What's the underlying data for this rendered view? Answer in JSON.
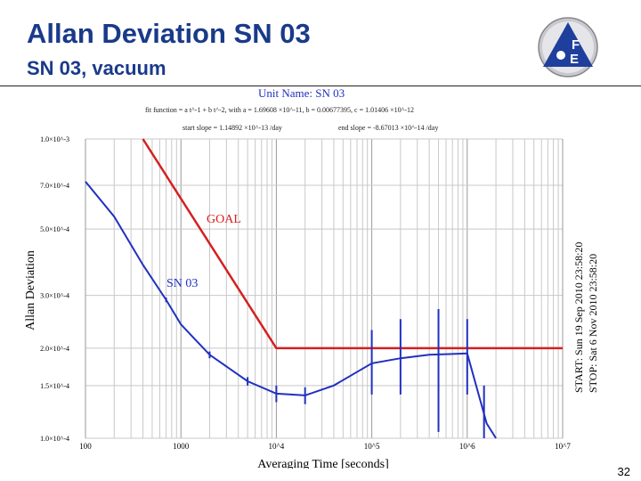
{
  "slide": {
    "title": "Allan Deviation SN 03",
    "subtitle": "SN 03, vacuum",
    "number": "32",
    "logo_text_top": "F",
    "logo_text_bottom": "E"
  },
  "colors": {
    "title": "#1a3a8a",
    "goal": "#d42020",
    "sn03": "#2030c0",
    "logo_blue": "#1f3f9c"
  },
  "chart_data": {
    "type": "line",
    "unit_name": "Unit Name: SN 03",
    "fit_line": "fit function = a t^-1 + b t^-2, with a = 1.69608 ×10^-11, b = 0.00677395, c = 1.01406 ×10^-12",
    "start_slope": "start slope = 1.14892 ×10^-13 /day",
    "end_slope": "end slope = -8.67013 ×10^-14 /day",
    "xlabel": "Averaging Time [seconds]",
    "ylabel": "Allan Deviation",
    "x_scale": "log",
    "y_scale": "log",
    "xlim": [
      100,
      10000000
    ],
    "ylim": [
      0.0001,
      0.001
    ],
    "x_ticks": [
      {
        "value": 100,
        "label": "100"
      },
      {
        "value": 1000,
        "label": "1000"
      },
      {
        "value": 10000,
        "label": "10^4"
      },
      {
        "value": 100000,
        "label": "10^5"
      },
      {
        "value": 1000000,
        "label": "10^6"
      },
      {
        "value": 10000000,
        "label": "10^7"
      }
    ],
    "y_ticks": [
      {
        "value": 0.001,
        "label": "1.0×10^-3"
      },
      {
        "value": 0.0007,
        "label": "7.0×10^-4"
      },
      {
        "value": 0.0005,
        "label": "5.0×10^-4"
      },
      {
        "value": 0.0003,
        "label": "3.0×10^-4"
      },
      {
        "value": 0.0002,
        "label": "2.0×10^-4"
      },
      {
        "value": 0.00015,
        "label": "1.5×10^-4"
      },
      {
        "value": 0.0001,
        "label": "1.0×10^-4"
      }
    ],
    "grid": true,
    "start_label": "START: Sun 19 Sep 2010 23:58:20",
    "stop_label": "STOP: Sat 6 Nov 2010 23:58:20",
    "series": [
      {
        "name": "GOAL",
        "color": "#d42020",
        "x": [
          400,
          10000,
          10000000
        ],
        "y": [
          0.001,
          0.0002,
          0.0002
        ]
      },
      {
        "name": "SN 03",
        "color": "#2030c0",
        "x": [
          100,
          200,
          400,
          700,
          1000,
          2000,
          5000,
          10000,
          20000,
          40000,
          100000,
          200000,
          400000,
          1000000,
          1600000,
          2000000
        ],
        "y": [
          0.00072,
          0.00055,
          0.00038,
          0.00029,
          0.00024,
          0.00019,
          0.000155,
          0.000141,
          0.000139,
          0.00015,
          0.000178,
          0.000185,
          0.00019,
          0.000192,
          0.000112,
          0.0001
        ]
      }
    ],
    "error_bars": [
      {
        "x": 700,
        "low": 0.000285,
        "high": 0.000295
      },
      {
        "x": 2000,
        "low": 0.000185,
        "high": 0.000195
      },
      {
        "x": 5000,
        "low": 0.00015,
        "high": 0.00016
      },
      {
        "x": 10000,
        "low": 0.000132,
        "high": 0.00015
      },
      {
        "x": 20000,
        "low": 0.00013,
        "high": 0.000148
      },
      {
        "x": 100000,
        "low": 0.00014,
        "high": 0.00023
      },
      {
        "x": 200000,
        "low": 0.00014,
        "high": 0.00025
      },
      {
        "x": 500000,
        "low": 0.000105,
        "high": 0.00027
      },
      {
        "x": 1000000,
        "low": 0.00014,
        "high": 0.00025
      },
      {
        "x": 1500000,
        "low": 0.0001,
        "high": 0.00015
      }
    ]
  }
}
